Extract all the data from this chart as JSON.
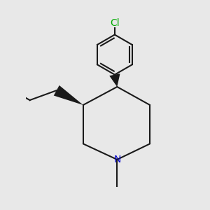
{
  "bg_color": "#e8e8e8",
  "bond_color": "#1a1a1a",
  "n_color": "#0000cc",
  "cl_color": "#00aa00",
  "line_width": 1.5,
  "font_size": 10
}
